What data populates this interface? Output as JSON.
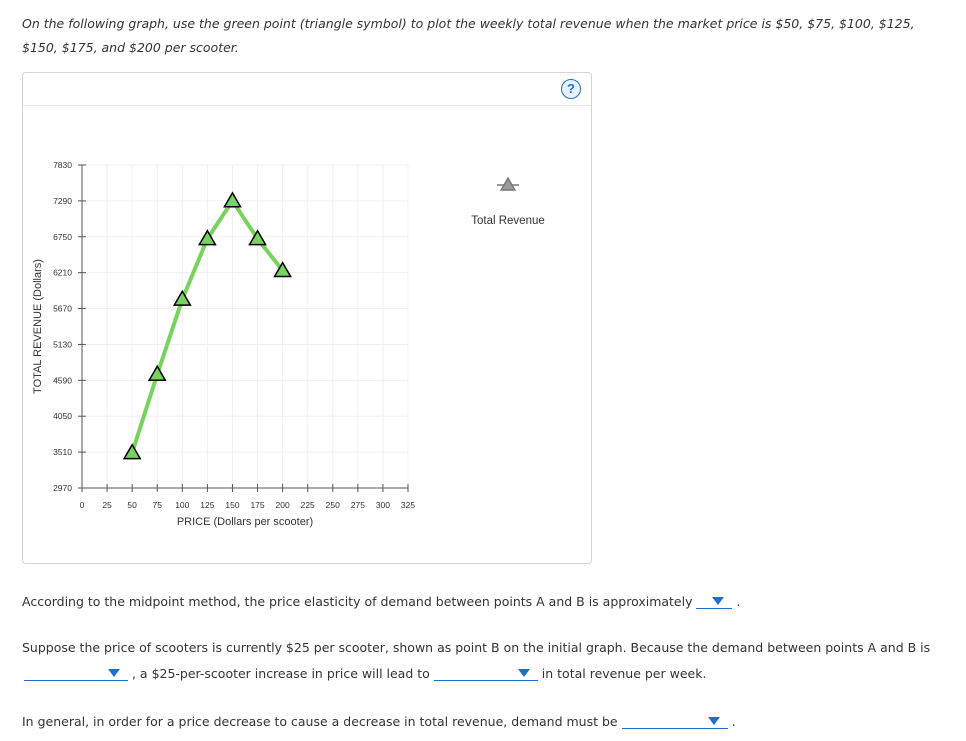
{
  "instructions": "On the following graph, use the green point (triangle symbol) to plot the weekly total revenue when the market price is $50, $75, $100, $125, $150, $175, and $200 per scooter.",
  "help_symbol": "?",
  "colors": {
    "series": "#78d35e",
    "marker_fill": "#78d35e",
    "marker_stroke": "#000000",
    "link": "#1f6fd0",
    "legend_marker": "#9a9a9a"
  },
  "chart_data": {
    "type": "line",
    "xlabel": "PRICE (Dollars per scooter)",
    "ylabel": "TOTAL REVENUE (Dollars)",
    "xlim": [
      0,
      325
    ],
    "ylim": [
      2970,
      7830
    ],
    "x_ticks": [
      "0",
      "25",
      "50",
      "75",
      "100",
      "125",
      "150",
      "175",
      "200",
      "225",
      "250",
      "275",
      "300",
      "325"
    ],
    "y_ticks": [
      "2970",
      "3510",
      "4050",
      "4590",
      "5130",
      "5670",
      "6210",
      "6750",
      "7290",
      "7830"
    ],
    "grid": true,
    "legend_position": "right",
    "series": [
      {
        "name": "Total Revenue",
        "x": [
          50,
          75,
          100,
          125,
          150,
          175,
          200
        ],
        "y": [
          3500,
          4680,
          5810,
          6720,
          7290,
          6720,
          6240
        ]
      }
    ]
  },
  "questions": {
    "q1_text": "According to the midpoint method, the price elasticity of demand between points A and B is approximately",
    "q1_end": ".",
    "q2_text_a": "Suppose the price of scooters is currently $25 per scooter, shown as point B on the initial graph. Because the demand between points A and B is",
    "q2_text_b": ", a $25-per-scooter increase in price will lead to",
    "q2_text_c": "in total revenue per week.",
    "q3_text": "In general, in order for a price decrease to cause a decrease in total revenue, demand must be",
    "q3_end": "."
  }
}
